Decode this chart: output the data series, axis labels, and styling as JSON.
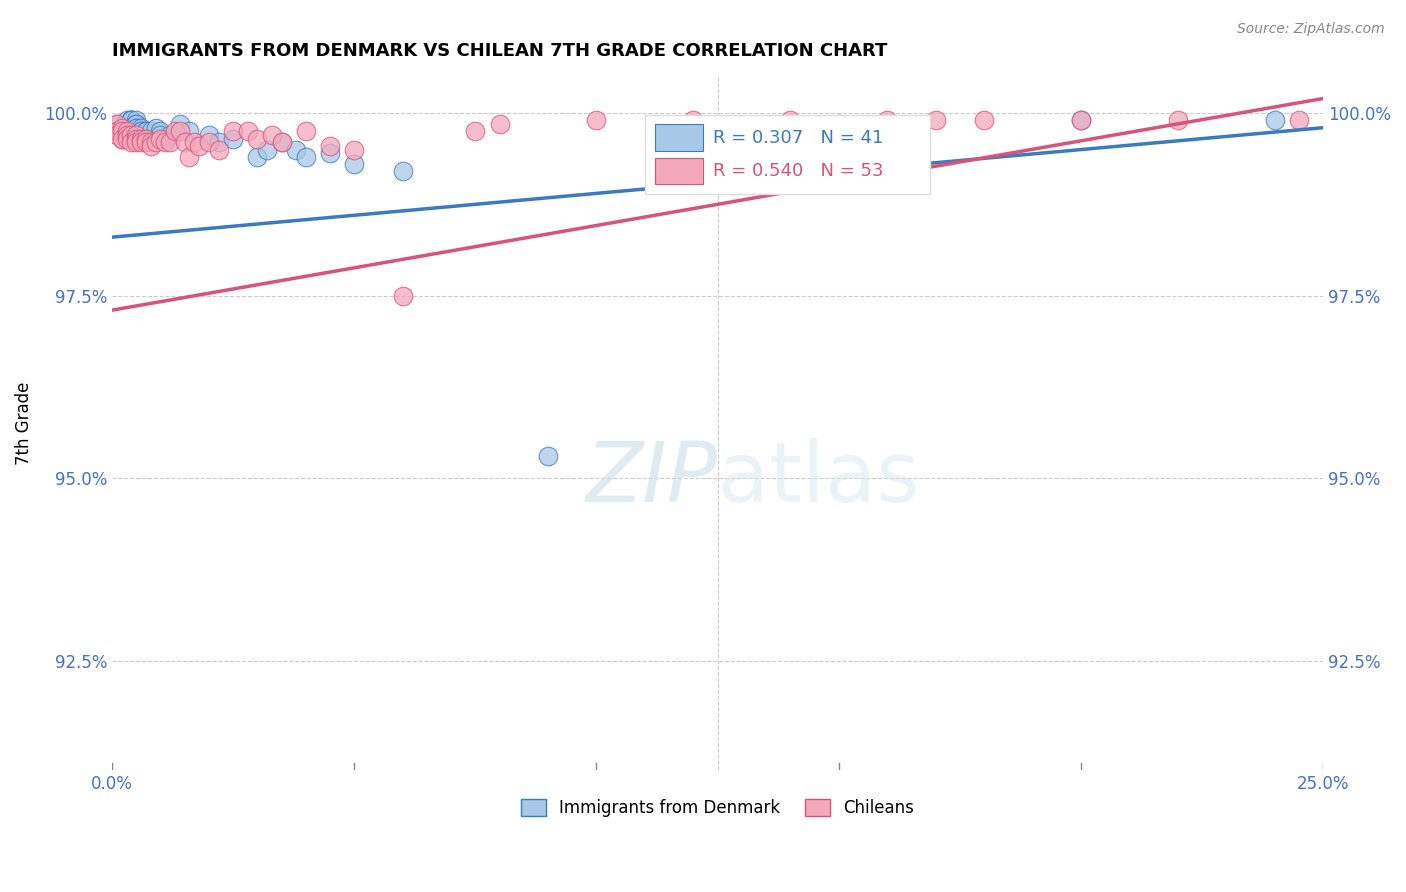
{
  "title": "IMMIGRANTS FROM DENMARK VS CHILEAN 7TH GRADE CORRELATION CHART",
  "source": "Source: ZipAtlas.com",
  "ylabel": "7th Grade",
  "yaxis_labels": [
    "100.0%",
    "97.5%",
    "95.0%",
    "92.5%"
  ],
  "yaxis_values": [
    1.0,
    0.975,
    0.95,
    0.925
  ],
  "xlim": [
    0.0,
    0.25
  ],
  "ylim": [
    0.91,
    1.005
  ],
  "legend_blue_r": "R = 0.307",
  "legend_blue_n": "N = 41",
  "legend_pink_r": "R = 0.540",
  "legend_pink_n": "N = 53",
  "legend_label_blue": "Immigrants from Denmark",
  "legend_label_pink": "Chileans",
  "blue_color": "#a8c8e8",
  "pink_color": "#f4a8bc",
  "blue_line_color": "#3a7abf",
  "pink_line_color": "#d9527a",
  "blue_x": [
    0.001,
    0.002,
    0.003,
    0.003,
    0.003,
    0.004,
    0.004,
    0.004,
    0.004,
    0.005,
    0.005,
    0.005,
    0.005,
    0.005,
    0.006,
    0.006,
    0.006,
    0.007,
    0.007,
    0.008,
    0.009,
    0.01,
    0.01,
    0.011,
    0.012,
    0.014,
    0.016,
    0.02,
    0.022,
    0.025,
    0.03,
    0.032,
    0.035,
    0.038,
    0.04,
    0.045,
    0.05,
    0.06,
    0.09,
    0.2,
    0.24
  ],
  "blue_y": [
    0.9985,
    0.9965,
    0.9985,
    0.9985,
    0.999,
    0.999,
    0.999,
    0.999,
    0.999,
    0.999,
    0.9985,
    0.9985,
    0.998,
    0.998,
    0.998,
    0.9975,
    0.9975,
    0.9975,
    0.9975,
    0.9975,
    0.998,
    0.9975,
    0.997,
    0.9965,
    0.997,
    0.9985,
    0.9975,
    0.997,
    0.996,
    0.9965,
    0.994,
    0.995,
    0.996,
    0.995,
    0.994,
    0.9945,
    0.993,
    0.992,
    0.953,
    0.999,
    0.999
  ],
  "pink_x": [
    0.001,
    0.001,
    0.001,
    0.002,
    0.002,
    0.002,
    0.003,
    0.003,
    0.003,
    0.004,
    0.004,
    0.005,
    0.005,
    0.005,
    0.006,
    0.006,
    0.007,
    0.007,
    0.008,
    0.008,
    0.009,
    0.01,
    0.011,
    0.012,
    0.013,
    0.014,
    0.015,
    0.016,
    0.017,
    0.018,
    0.02,
    0.022,
    0.025,
    0.028,
    0.03,
    0.033,
    0.035,
    0.04,
    0.045,
    0.05,
    0.06,
    0.075,
    0.08,
    0.1,
    0.12,
    0.14,
    0.15,
    0.16,
    0.17,
    0.18,
    0.2,
    0.22,
    0.245
  ],
  "pink_y": [
    0.9985,
    0.9975,
    0.997,
    0.998,
    0.9975,
    0.9965,
    0.9975,
    0.997,
    0.9965,
    0.997,
    0.996,
    0.997,
    0.9965,
    0.996,
    0.9965,
    0.996,
    0.9965,
    0.996,
    0.996,
    0.9955,
    0.996,
    0.9965,
    0.996,
    0.996,
    0.9975,
    0.9975,
    0.996,
    0.994,
    0.996,
    0.9955,
    0.996,
    0.995,
    0.9975,
    0.9975,
    0.9965,
    0.997,
    0.996,
    0.9975,
    0.9955,
    0.995,
    0.975,
    0.9975,
    0.9985,
    0.999,
    0.999,
    0.999,
    0.9985,
    0.999,
    0.999,
    0.999,
    0.999,
    0.999,
    0.999
  ],
  "blue_trendline_x": [
    0.0,
    0.25
  ],
  "blue_trendline_y": [
    0.983,
    0.998
  ],
  "pink_trendline_x": [
    0.0,
    0.25
  ],
  "pink_trendline_y": [
    0.973,
    1.002
  ]
}
